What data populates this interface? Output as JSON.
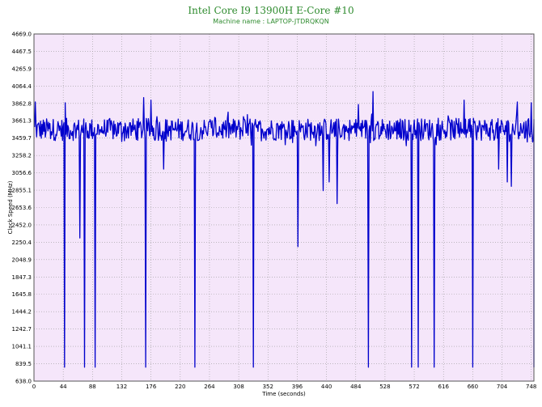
{
  "chart_data": {
    "type": "line",
    "title": "Intel Core I9 13900H E-Core #10",
    "subtitle": "Machine name : LAPTOP-JTDRQKQN",
    "xlabel": "Time (seconds)",
    "ylabel": "Clock Speed (MHz)",
    "xlim": [
      0,
      752
    ],
    "ylim": [
      638.0,
      4669.0
    ],
    "x_ticks": [
      0,
      44,
      88,
      132,
      176,
      220,
      264,
      308,
      352,
      396,
      440,
      484,
      528,
      572,
      616,
      660,
      704,
      748
    ],
    "y_ticks": [
      638.0,
      839.5,
      1041.1,
      1242.7,
      1444.2,
      1645.8,
      1847.3,
      2048.9,
      2250.4,
      2452.0,
      2653.6,
      2855.1,
      3056.6,
      3258.2,
      3459.7,
      3661.3,
      3862.8,
      4064.4,
      4265.9,
      4467.5,
      4669.0
    ],
    "grid": true,
    "background_color": "#f5e6fa",
    "line_color": "#0000cc",
    "baseline_mhz": 3560,
    "series": [
      {
        "values_note_removed": true,
        "dips": [
          {
            "x": 46,
            "y": 800
          },
          {
            "x": 69,
            "y": 2300
          },
          {
            "x": 76,
            "y": 800
          },
          {
            "x": 92,
            "y": 800
          },
          {
            "x": 168,
            "y": 800
          },
          {
            "x": 195,
            "y": 3100
          },
          {
            "x": 242,
            "y": 800
          },
          {
            "x": 330,
            "y": 800
          },
          {
            "x": 397,
            "y": 2200
          },
          {
            "x": 435,
            "y": 2850
          },
          {
            "x": 444,
            "y": 2950
          },
          {
            "x": 456,
            "y": 2700
          },
          {
            "x": 503,
            "y": 800
          },
          {
            "x": 568,
            "y": 800
          },
          {
            "x": 578,
            "y": 800
          },
          {
            "x": 602,
            "y": 800
          },
          {
            "x": 660,
            "y": 800
          },
          {
            "x": 699,
            "y": 3100
          },
          {
            "x": 712,
            "y": 2950
          },
          {
            "x": 718,
            "y": 2900
          },
          {
            "x": 755,
            "y": 800
          }
        ],
        "spikes": [
          {
            "x": 2,
            "y": 3880
          },
          {
            "x": 47,
            "y": 3870
          },
          {
            "x": 165,
            "y": 3930
          },
          {
            "x": 176,
            "y": 3900
          },
          {
            "x": 488,
            "y": 3850
          },
          {
            "x": 510,
            "y": 4000
          },
          {
            "x": 647,
            "y": 3900
          },
          {
            "x": 727,
            "y": 3880
          },
          {
            "x": 748,
            "y": 3870
          }
        ]
      }
    ]
  }
}
